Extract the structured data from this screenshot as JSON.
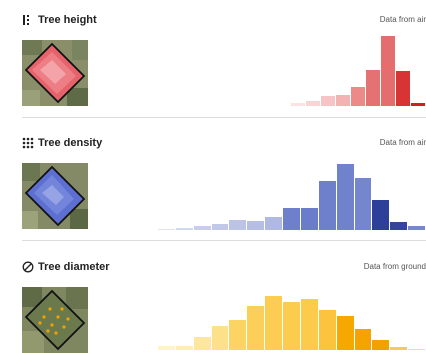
{
  "sections": [
    {
      "id": "height",
      "title": "Tree height",
      "source": "Data from air",
      "icon": "tree-height-icon",
      "accent": "#e05a5a",
      "values": [
        0,
        0,
        0,
        0,
        0,
        0,
        0,
        0,
        0,
        0,
        0.04,
        0.07,
        0.13,
        0.15,
        0.26,
        0.49,
        0.94,
        0.47,
        0.04
      ],
      "colors": [
        "#ffffff",
        "#ffffff",
        "#ffffff",
        "#ffffff",
        "#ffffff",
        "#ffffff",
        "#ffffff",
        "#ffffff",
        "#ffffff",
        "#ffffff",
        "#fbe3e3",
        "#f8d4d4",
        "#f6c4c4",
        "#f3b3b3",
        "#ec8a8a",
        "#e57272",
        "#e46e6e",
        "#d93434",
        "#cf2020"
      ]
    },
    {
      "id": "density",
      "title": "Tree density",
      "source": "Data from air",
      "icon": "tree-density-icon",
      "accent": "#5b6fc7",
      "values": [
        0.01,
        0.03,
        0.06,
        0.08,
        0.13,
        0.12,
        0.17,
        0.3,
        0.3,
        0.66,
        0.89,
        0.7,
        0.4,
        0.11,
        0.06
      ],
      "colors": [
        "#dfe3f3",
        "#d2d8ef",
        "#c7cdea",
        "#c1c8e8",
        "#bcc4e6",
        "#b6bee4",
        "#b0b9e2",
        "#6e7fcb",
        "#6b7cca",
        "#6e80cb",
        "#7182cc",
        "#7586ce",
        "#2e3f9a",
        "#34449f",
        "#7787cd"
      ]
    },
    {
      "id": "diameter",
      "title": "Tree diameter",
      "source": "Data from ground",
      "icon": "tree-diameter-icon",
      "accent": "#f2a500",
      "values": [
        0.05,
        0.05,
        0.17,
        0.33,
        0.41,
        0.6,
        0.73,
        0.65,
        0.69,
        0.54,
        0.46,
        0.28,
        0.13,
        0.04,
        0.02
      ],
      "colors": [
        "#fff3c8",
        "#ffeeb5",
        "#fde6a0",
        "#fde08a",
        "#fcd463",
        "#fccf58",
        "#fccd52",
        "#fccc4f",
        "#fccb4b",
        "#fbc33e",
        "#f6a700",
        "#f4a300",
        "#f3a100",
        "#f7c667",
        "#fad9a1"
      ]
    }
  ]
}
